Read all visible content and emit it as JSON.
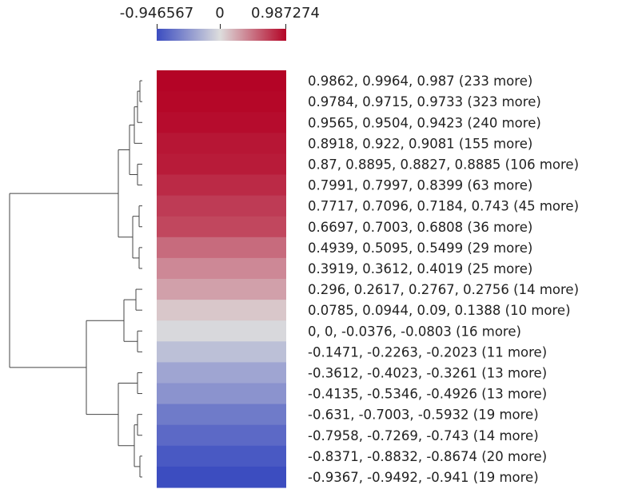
{
  "chart_data": {
    "type": "heatmap",
    "colorbar": {
      "min": -0.946567,
      "max": 0.987274,
      "tick_labels": [
        "-0.946567",
        "0",
        "0.987274"
      ],
      "colors": {
        "low": "#3b4cc0",
        "mid": "#dddddd",
        "high": "#b40426"
      }
    },
    "rows": [
      {
        "label": "0.9862, 0.9964, 0.987 (233 more)",
        "value": 0.9874
      },
      {
        "label": "0.9784, 0.9715, 0.9733 (323 more)",
        "value": 0.9744
      },
      {
        "label": "0.9565, 0.9504, 0.9423 (240 more)",
        "value": 0.9497
      },
      {
        "label": "0.8918, 0.922, 0.9081 (155 more)",
        "value": 0.9073
      },
      {
        "label": "0.87, 0.8895, 0.8827, 0.8885 (106 more)",
        "value": 0.8827
      },
      {
        "label": "0.7991, 0.7997, 0.8399 (63 more)",
        "value": 0.8129
      },
      {
        "label": "0.7717, 0.7096, 0.7184, 0.743 (45 more)",
        "value": 0.7357
      },
      {
        "label": "0.6697, 0.7003, 0.6808 (36 more)",
        "value": 0.6836
      },
      {
        "label": "0.4939, 0.5095, 0.5499 (29 more)",
        "value": 0.5178
      },
      {
        "label": "0.3919, 0.3612, 0.4019 (25 more)",
        "value": 0.385
      },
      {
        "label": "0.296, 0.2617, 0.2767, 0.2756 (14 more)",
        "value": 0.2775
      },
      {
        "label": "0.0785, 0.0944, 0.09, 0.1388 (10 more)",
        "value": 0.1004
      },
      {
        "label": "0, 0, -0.0376, -0.0803 (16 more)",
        "value": -0.0295
      },
      {
        "label": "-0.1471, -0.2263, -0.2023 (11 more)",
        "value": -0.1919
      },
      {
        "label": "-0.3612, -0.4023, -0.3261 (13 more)",
        "value": -0.3632
      },
      {
        "label": "-0.4135, -0.5346, -0.4926 (13 more)",
        "value": -0.4802
      },
      {
        "label": "-0.631, -0.7003, -0.5932 (19 more)",
        "value": -0.6415
      },
      {
        "label": "-0.7958, -0.7269, -0.743 (14 more)",
        "value": -0.7552
      },
      {
        "label": "-0.8371, -0.8832, -0.8674 (20 more)",
        "value": -0.8626
      },
      {
        "label": "-0.9367, -0.9492, -0.941 (19 more)",
        "value": -0.9423
      }
    ]
  }
}
